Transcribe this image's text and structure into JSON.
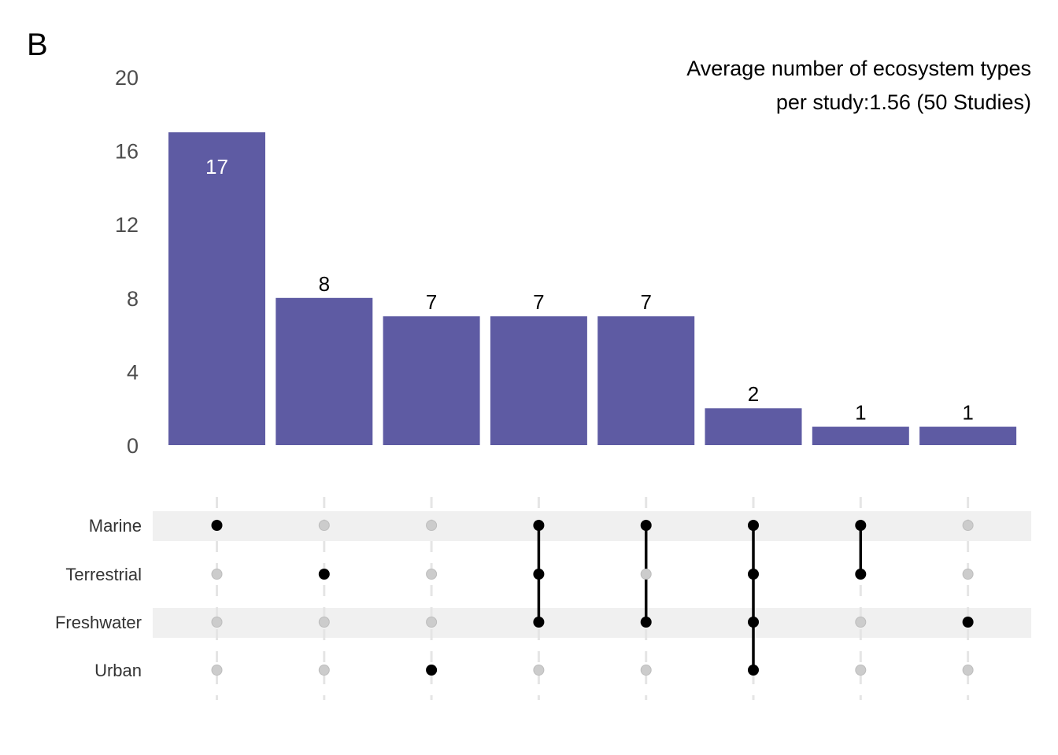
{
  "panel_label": "B",
  "annotation": {
    "line1": "Average number of ecosystem types",
    "line2": "per study:1.56 (50 Studies)"
  },
  "colors": {
    "bar": "#5e5ba3",
    "dot_active": "#000000",
    "dot_inactive": "#cccccc",
    "stripe": "#f0f0f0",
    "grid": "#e5e5e5",
    "label_inside": "#ffffff",
    "label_outside": "#000000"
  },
  "chart_data": {
    "type": "upset",
    "ylim": [
      0,
      20
    ],
    "yticks": [
      0,
      4,
      8,
      12,
      16,
      20
    ],
    "sets": [
      "Marine",
      "Terrestrial",
      "Freshwater",
      "Urban"
    ],
    "intersections": [
      {
        "members": [
          "Marine"
        ],
        "count": 17
      },
      {
        "members": [
          "Terrestrial"
        ],
        "count": 8
      },
      {
        "members": [
          "Urban"
        ],
        "count": 7
      },
      {
        "members": [
          "Marine",
          "Terrestrial",
          "Freshwater"
        ],
        "count": 7
      },
      {
        "members": [
          "Marine",
          "Freshwater"
        ],
        "count": 7
      },
      {
        "members": [
          "Marine",
          "Terrestrial",
          "Freshwater",
          "Urban"
        ],
        "count": 2
      },
      {
        "members": [
          "Marine",
          "Terrestrial"
        ],
        "count": 1
      },
      {
        "members": [
          "Freshwater"
        ],
        "count": 1
      }
    ]
  }
}
